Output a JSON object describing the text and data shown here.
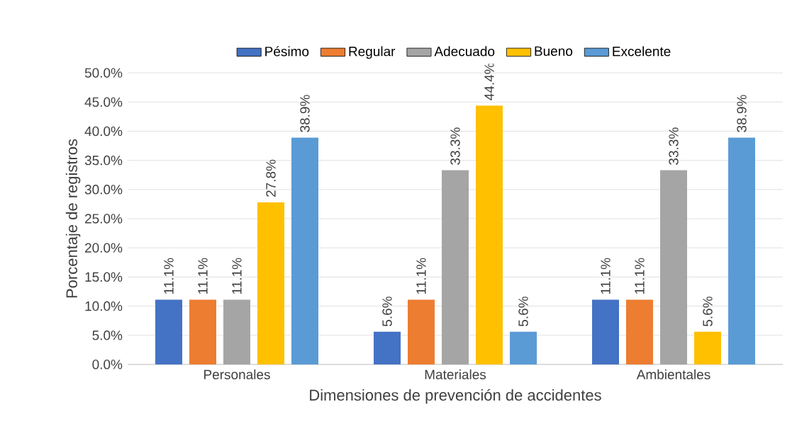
{
  "chart_data": {
    "type": "bar",
    "xlabel": "Dimensiones de prevención de accidentes",
    "ylabel": "Porcentaje de registros",
    "categories": [
      "Personales",
      "Materiales",
      "Ambientales"
    ],
    "series": [
      {
        "name": "Pésimo",
        "color": "#4472c4",
        "values": [
          11.1,
          5.6,
          11.1
        ],
        "value_labels": [
          "11.1%",
          "5.6%",
          "11.1%"
        ]
      },
      {
        "name": "Regular",
        "color": "#ed7d31",
        "values": [
          11.1,
          11.1,
          11.1
        ],
        "value_labels": [
          "11.1%",
          "11.1%",
          "11.1%"
        ]
      },
      {
        "name": "Adecuado",
        "color": "#a5a5a5",
        "values": [
          11.1,
          33.3,
          33.3
        ],
        "value_labels": [
          "11.1%",
          "33.3%",
          "33.3%"
        ]
      },
      {
        "name": "Bueno",
        "color": "#ffc000",
        "values": [
          27.8,
          44.4,
          5.6
        ],
        "value_labels": [
          "27.8%",
          "44.4%",
          "5.6%"
        ]
      },
      {
        "name": "Excelente",
        "color": "#5b9bd5",
        "values": [
          38.9,
          5.6,
          38.9
        ],
        "value_labels": [
          "38.9%",
          "5.6%",
          "38.9%"
        ]
      }
    ],
    "ylim": [
      0,
      50
    ],
    "yticks": [
      {
        "value": 0,
        "label": "0.0%"
      },
      {
        "value": 5,
        "label": "5.0%"
      },
      {
        "value": 10,
        "label": "10.0%"
      },
      {
        "value": 15,
        "label": "15.0%"
      },
      {
        "value": 20,
        "label": "20.0%"
      },
      {
        "value": 25,
        "label": "25.0%"
      },
      {
        "value": 30,
        "label": "30.0%"
      },
      {
        "value": 35,
        "label": "35.0%"
      },
      {
        "value": 40,
        "label": "40.0%"
      },
      {
        "value": 45,
        "label": "45.0%"
      },
      {
        "value": 50,
        "label": "50.0%"
      }
    ],
    "grid": "y",
    "legend": "top"
  }
}
